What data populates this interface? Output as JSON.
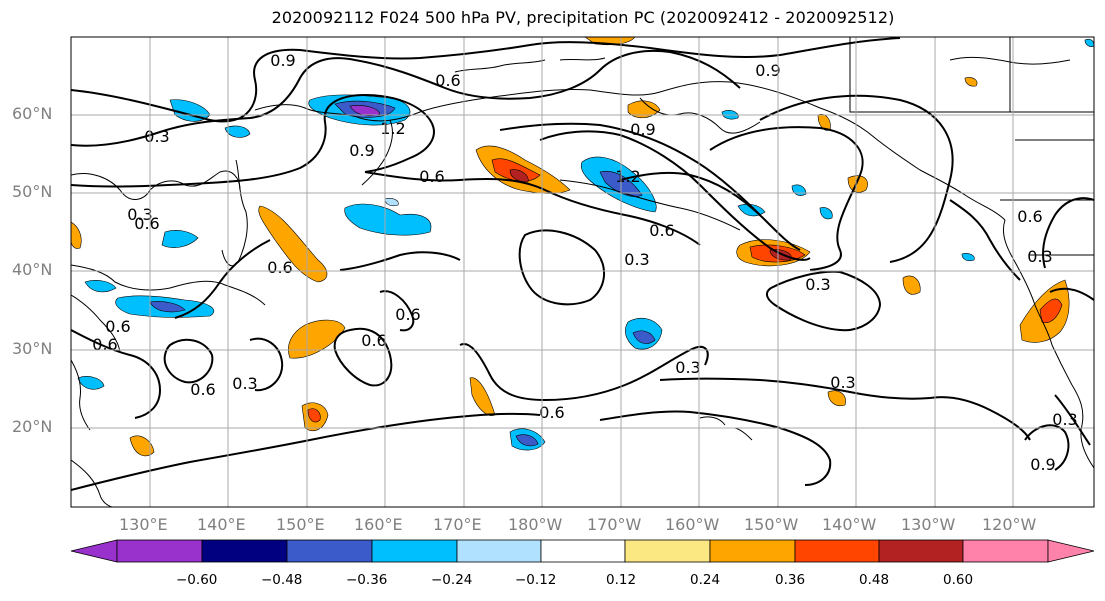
{
  "title": "2020092112 F024 500 hPa PV, precipitation PC (2020092412 - 2020092512)",
  "lat_labels": [
    "60°N",
    "50°N",
    "40°N",
    "30°N",
    "20°N"
  ],
  "lon_labels": [
    "130°E",
    "140°E",
    "150°E",
    "160°E",
    "170°E",
    "180°W",
    "170°W",
    "160°W",
    "150°W",
    "140°W",
    "130°W",
    "120°W"
  ],
  "contour_labels": [
    "0.9",
    "0.6",
    "0.9",
    "0.3",
    "0.9",
    "1.2",
    "0.6",
    "0.9",
    "1.2",
    "0.6",
    "0.6",
    "0.3",
    "0.6",
    "0.6",
    "0.3",
    "0.6",
    "0.6",
    "0.6",
    "0.3",
    "0.3",
    "0.6",
    "0.3",
    "0.3",
    "0.6",
    "0.3",
    "0.9",
    "0.6",
    "0.3"
  ],
  "colorbar": {
    "ticks": [
      "−0.60",
      "−0.48",
      "−0.36",
      "−0.24",
      "−0.12",
      "0.12",
      "0.24",
      "0.36",
      "0.48",
      "0.60"
    ],
    "colors": [
      "#9932cc",
      "#000080",
      "#3a5bc9",
      "#00bfff",
      "#b0e2ff",
      "#ffffff",
      "#fce883",
      "#ffa500",
      "#ff4500",
      "#b22222",
      "#ff82ab"
    ]
  }
}
